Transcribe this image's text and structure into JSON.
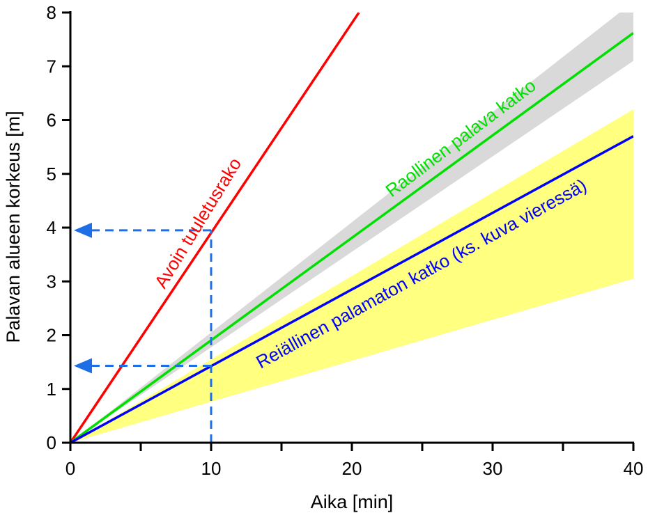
{
  "chart_data": {
    "type": "line",
    "xlabel": "Aika [min]",
    "ylabel": "Palavan alueen korkeus [m]",
    "xlim": [
      0,
      40
    ],
    "ylim": [
      0,
      8
    ],
    "xticks": [
      0,
      10,
      20,
      30,
      40
    ],
    "xtick_labels": [
      "0",
      "10",
      "20",
      "30",
      "40"
    ],
    "yticks": [
      0,
      1,
      2,
      3,
      4,
      5,
      6,
      7,
      8
    ],
    "ytick_labels": [
      "0",
      "1",
      "2",
      "3",
      "4",
      "5",
      "6",
      "7",
      "8"
    ],
    "grid": false,
    "legend": "none",
    "series": [
      {
        "name": "Avoin tuuletusrako",
        "color": "#ff0000",
        "x": [
          0,
          20.5
        ],
        "y": [
          0,
          8
        ]
      },
      {
        "name": "Raollinen palava katko",
        "color": "#00e000",
        "x": [
          0,
          40
        ],
        "y": [
          0,
          7.62
        ]
      },
      {
        "name": "Reiällinen palamaton katko (ks. kuva vieressä)",
        "color": "#0000ff",
        "x": [
          0,
          40
        ],
        "y": [
          0,
          5.7
        ]
      }
    ],
    "bands": [
      {
        "color": "#d9d9d9",
        "x": [
          0,
          40
        ],
        "upper": [
          0,
          8.2
        ],
        "lower": [
          0,
          7.1
        ]
      },
      {
        "color": "#ffff80",
        "x": [
          0,
          40
        ],
        "upper": [
          0,
          6.2
        ],
        "lower": [
          0,
          3.05
        ]
      }
    ],
    "reference_lines": [
      {
        "color": "#1e6fe6",
        "x": 10,
        "y": 3.95
      },
      {
        "color": "#1e6fe6",
        "x": 10,
        "y": 1.43
      }
    ]
  }
}
